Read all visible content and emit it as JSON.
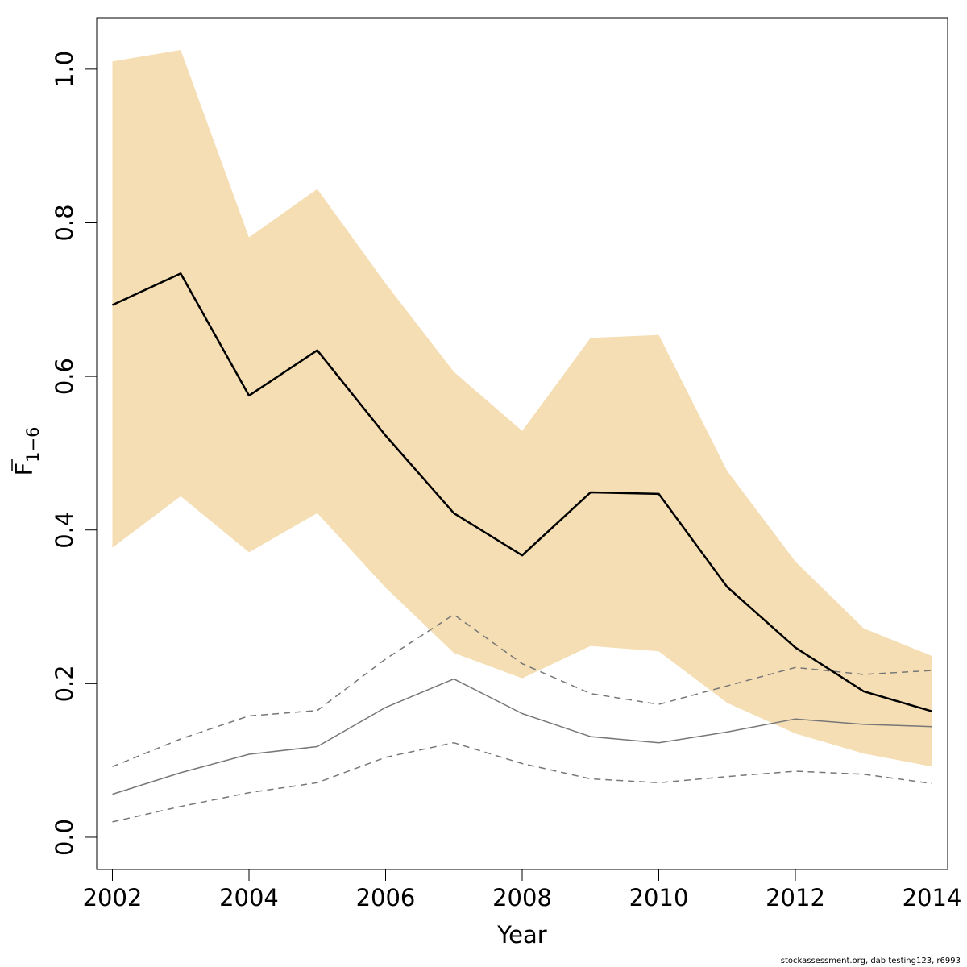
{
  "chart_data": {
    "type": "line",
    "xlabel": "Year",
    "ylabel": {
      "base": "F",
      "subscript": "1−6",
      "overline": true
    },
    "xlim": [
      2001.77,
      2014.23
    ],
    "ylim": [
      -0.042,
      1.067
    ],
    "xticks": [
      "2002",
      "2004",
      "2006",
      "2008",
      "2010",
      "2012",
      "2014"
    ],
    "yticks": [
      "0.0",
      "0.2",
      "0.4",
      "0.6",
      "0.8",
      "1.0"
    ],
    "x": [
      2002,
      2003,
      2004,
      2005,
      2006,
      2007,
      2008,
      2009,
      2010,
      2011,
      2012,
      2013,
      2014
    ],
    "series": [
      {
        "role": "estimate",
        "values": [
          0.693,
          0.734,
          0.575,
          0.634,
          0.523,
          0.422,
          0.367,
          0.449,
          0.447,
          0.326,
          0.247,
          0.19,
          0.164
        ]
      },
      {
        "role": "band-upper",
        "values": [
          1.01,
          1.025,
          0.781,
          0.844,
          0.721,
          0.606,
          0.529,
          0.65,
          0.654,
          0.477,
          0.359,
          0.272,
          0.236
        ]
      },
      {
        "role": "band-lower",
        "values": [
          0.377,
          0.444,
          0.371,
          0.422,
          0.325,
          0.24,
          0.207,
          0.249,
          0.242,
          0.175,
          0.135,
          0.109,
          0.092
        ]
      },
      {
        "role": "reference",
        "values": [
          0.056,
          0.084,
          0.108,
          0.118,
          0.169,
          0.206,
          0.161,
          0.131,
          0.123,
          0.137,
          0.154,
          0.147,
          0.144
        ]
      },
      {
        "role": "reference-upper",
        "values": [
          0.092,
          0.128,
          0.158,
          0.165,
          0.232,
          0.29,
          0.226,
          0.187,
          0.173,
          0.197,
          0.221,
          0.212,
          0.217
        ]
      },
      {
        "role": "reference-lower",
        "values": [
          0.02,
          0.04,
          0.058,
          0.071,
          0.104,
          0.123,
          0.096,
          0.076,
          0.071,
          0.079,
          0.086,
          0.082,
          0.07
        ]
      }
    ],
    "colors": {
      "band": "#F5DEB3",
      "estimate": "#000000",
      "reference": "#777777",
      "frame": "#000000"
    },
    "grid": false,
    "legend": "none"
  },
  "footnote": "stockassessment.org, dab testing123, r6993"
}
